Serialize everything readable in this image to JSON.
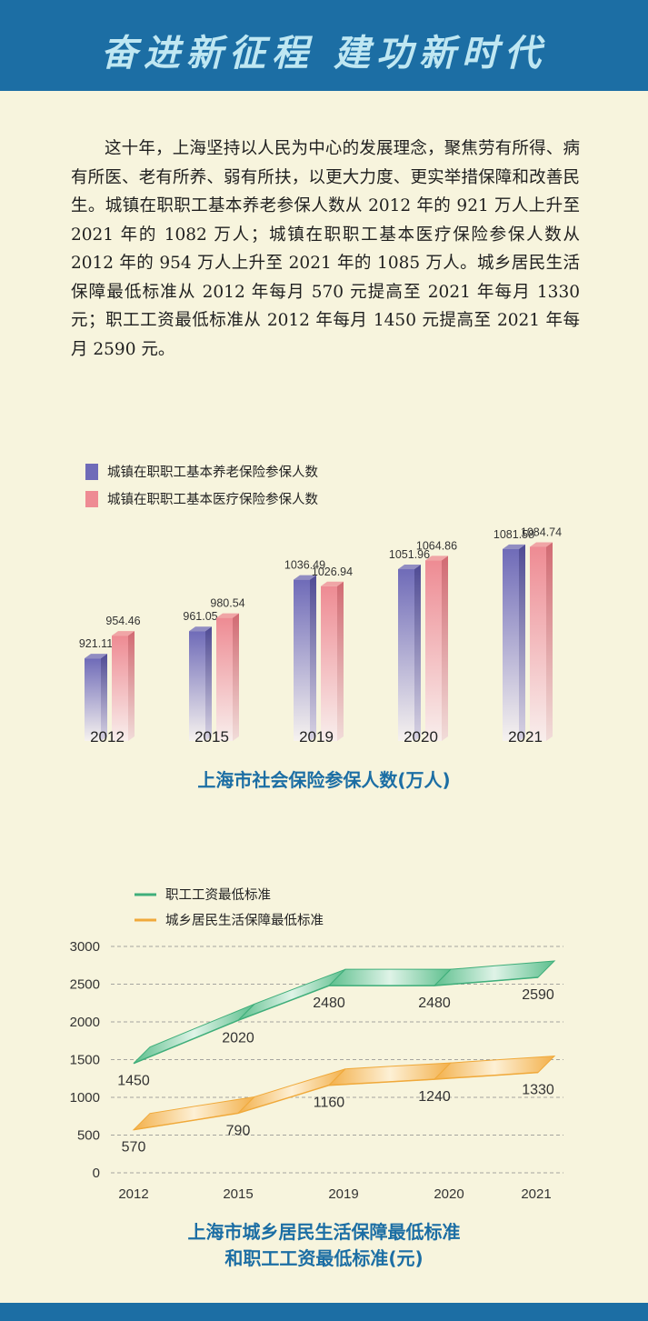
{
  "header": {
    "title": "奋进新征程  建功新时代"
  },
  "intro": "这十年，上海坚持以人民为中心的发展理念，聚焦劳有所得、病有所医、老有所养、弱有所扶，以更大力度、更实举措保障和改善民生。城镇在职职工基本养老参保人数从 2012 年的 921 万人上升至 2021 年的 1082 万人；城镇在职职工基本医疗保险参保人数从 2012 年的 954 万人上升至 2021 年的 1085 万人。城乡居民生活保障最低标准从 2012 年每月 570 元提高至 2021 年每月 1330 元；职工工资最低标准从 2012 年每月 1450 元提高至 2021 年每月 2590 元。",
  "colors": {
    "header": "#1c6ea4",
    "purple": "#6f6bb8",
    "pink": "#ee8b93",
    "green": "#3fae7a",
    "orange": "#f0a93a",
    "title": "#1c6ea4"
  },
  "chart_data": [
    {
      "type": "bar",
      "title": "上海市社会保险参保人数(万人)",
      "categories": [
        "2012",
        "2015",
        "2019",
        "2020",
        "2021"
      ],
      "series": [
        {
          "name": "城镇在职职工基本养老保险参保人数",
          "values": [
            921.11,
            961.05,
            1036.49,
            1051.96,
            1081.58
          ],
          "labels": [
            "921.11",
            "961.05",
            "1036.49",
            "1051.96",
            "1081.58"
          ]
        },
        {
          "name": "城镇在职职工基本医疗保险参保人数",
          "values": [
            954.46,
            980.54,
            1026.94,
            1064.86,
            1084.74
          ],
          "labels": [
            "954.46",
            "980.54",
            "1026.94",
            "1064.86",
            "1084.74"
          ]
        }
      ],
      "ylim": [
        800,
        1100
      ],
      "legend": "top-left",
      "grid": false
    },
    {
      "type": "line",
      "title_lines": [
        "上海市城乡居民生活保障最低标准",
        "和职工工资最低标准(元)"
      ],
      "categories": [
        "2012",
        "2015",
        "2019",
        "2020",
        "2021"
      ],
      "series": [
        {
          "name": "职工工资最低标准",
          "values": [
            1450,
            2020,
            2480,
            2480,
            2590
          ],
          "labels": [
            "1450",
            "2020",
            "2480",
            "2480",
            "2590"
          ]
        },
        {
          "name": "城乡居民生活保障最低标准",
          "values": [
            570,
            790,
            1160,
            1240,
            1330
          ],
          "labels": [
            "570",
            "790",
            "1160",
            "1240",
            "1330"
          ]
        }
      ],
      "yticks": [
        "0",
        "500",
        "1000",
        "1500",
        "2000",
        "2500",
        "3000"
      ],
      "ylim": [
        0,
        3000
      ],
      "legend": "top-left",
      "grid": true
    }
  ]
}
